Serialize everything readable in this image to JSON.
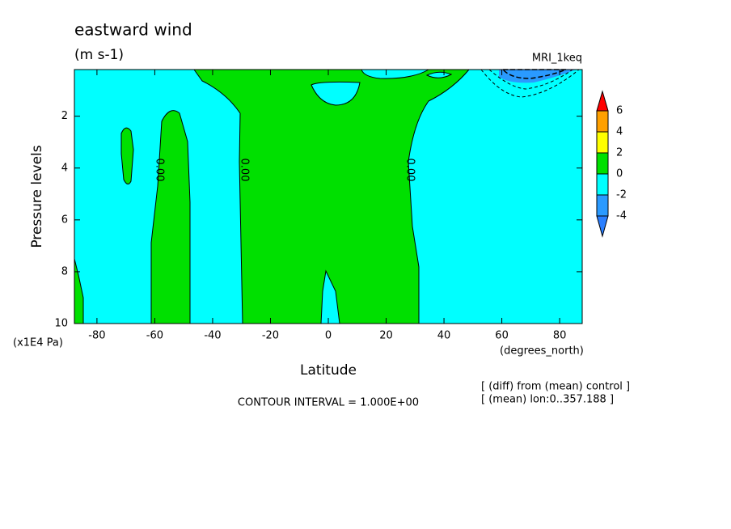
{
  "chart_data": {
    "type": "contour",
    "title": "eastward wind",
    "units": "(m s-1)",
    "dataset": "MRI_1keq",
    "xlabel": "Latitude",
    "ylabel": "Pressure levels",
    "x_unit": "(degrees_north)",
    "y_unit": "(x1E4 Pa)",
    "xlim": [
      -87.8,
      87.8
    ],
    "xticks": [
      -80,
      -60,
      -40,
      -20,
      0,
      20,
      40,
      60,
      80
    ],
    "ylim": [
      10,
      0.2
    ],
    "yticks": [
      2,
      4,
      6,
      8,
      10
    ],
    "contour_labels": [
      {
        "value": 0,
        "label": "0.00"
      },
      {
        "value": 0,
        "label": "0.00"
      },
      {
        "value": 0,
        "label": "0.00"
      }
    ],
    "contour_interval": "CONTOUR INTERVAL = 1.000E+00",
    "annotations": [
      "[ (diff) from (mean) control ]",
      "[ (mean) lon:0..357.188 ]"
    ],
    "colorbar": {
      "levels": [
        -4,
        -2,
        0,
        2,
        4,
        6
      ],
      "colors": [
        "#2a7fff",
        "#2a9aff",
        "#00ffff",
        "#00e000",
        "#ffff00",
        "#ffa000",
        "#ff0000"
      ]
    }
  }
}
